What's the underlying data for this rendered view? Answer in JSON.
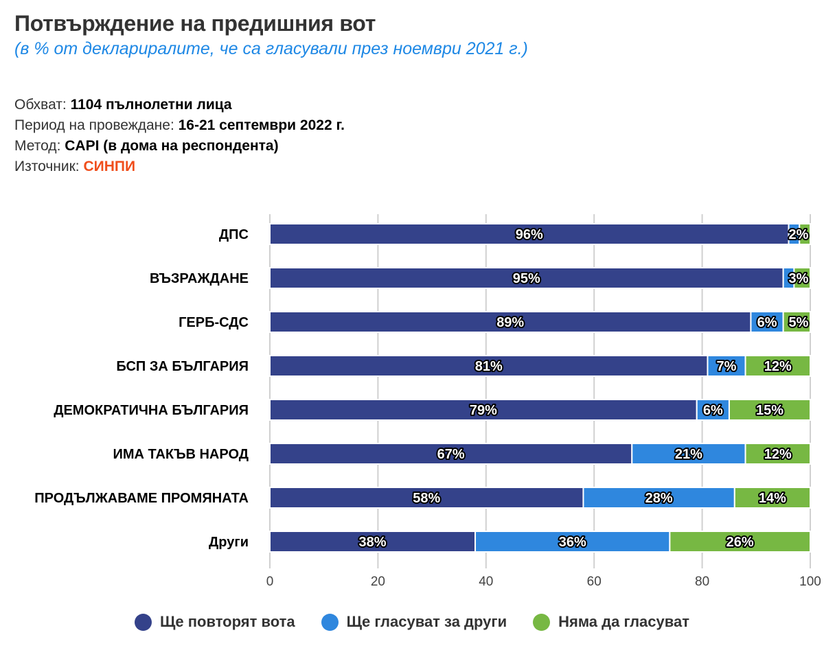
{
  "header": {
    "title": "Потвърждение на предишния вот",
    "subtitle": "(в % от деклариралите, че са гласували през ноември 2021 г.)"
  },
  "meta": [
    {
      "label": "Обхват: ",
      "value": "1104 пълнолетни лица"
    },
    {
      "label": "Период на провеждане: ",
      "value": "16-21 септември 2022 г."
    },
    {
      "label": "Метод: ",
      "value": "CAPI (в дома на респондента)"
    },
    {
      "label": "Източник: ",
      "value": "СИНПИ"
    }
  ],
  "colors": {
    "repeat": "#34428a",
    "other": "#2f87de",
    "novote": "#77b843",
    "grid": "#d0d0d0",
    "source": "#f04e1c"
  },
  "chart_data": {
    "type": "bar",
    "orientation": "horizontal",
    "stacked": true,
    "title": "Потвърждение на предишния вот",
    "subtitle": "(в % от деклариралите, че са гласували през ноември 2021 г.)",
    "xlabel": "",
    "ylabel": "",
    "xlim": [
      0,
      100
    ],
    "xticks": [
      0,
      20,
      40,
      60,
      80,
      100
    ],
    "grid": true,
    "legend_position": "bottom",
    "categories": [
      "ДПС",
      "ВЪЗРАЖДАНЕ",
      "ГЕРБ-СДС",
      "БСП ЗА БЪЛГАРИЯ",
      "ДЕМОКРАТИЧНА БЪЛГАРИЯ",
      "ИМА ТАКЪВ НАРОД",
      "ПРОДЪЛЖАВАМЕ ПРОМЯНАТА",
      "Други"
    ],
    "series": [
      {
        "name": "Ще повторят вота",
        "key": "repeat",
        "values": [
          96,
          95,
          89,
          81,
          79,
          67,
          58,
          38
        ]
      },
      {
        "name": "Ще гласуват за други",
        "key": "other",
        "values": [
          2,
          2,
          6,
          7,
          6,
          21,
          28,
          36
        ]
      },
      {
        "name": "Няма да гласуват",
        "key": "novote",
        "values": [
          2,
          3,
          5,
          12,
          15,
          12,
          14,
          26
        ]
      }
    ],
    "hidden_labels": [
      [
        0,
        1
      ],
      [
        1,
        1
      ]
    ]
  }
}
